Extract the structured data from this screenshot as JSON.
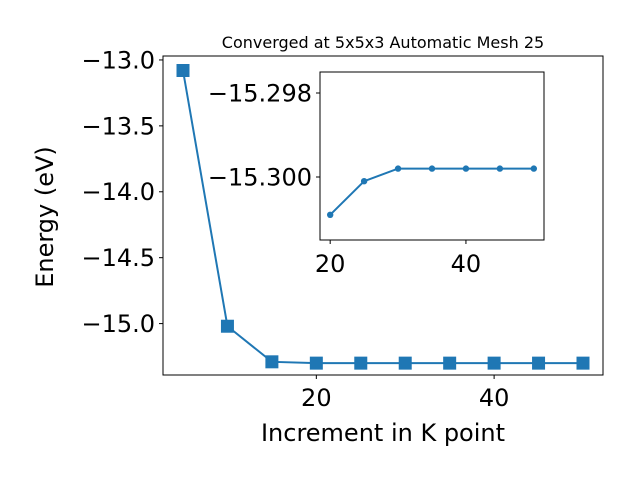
{
  "chart_data": [
    {
      "type": "line",
      "title": "Converged at 5x5x3 Automatic Mesh 25",
      "xlabel": "Increment in K point",
      "ylabel": "Energy (eV)",
      "xlim": [
        2.75,
        52.25
      ],
      "ylim": [
        -15.39,
        -12.97
      ],
      "xticks": [
        20,
        40
      ],
      "xtick_labels": [
        "20",
        "40"
      ],
      "yticks": [
        -13.0,
        -13.5,
        -14.0,
        -14.5,
        -15.0
      ],
      "ytick_labels": [
        "−13.0",
        "−13.5",
        "−14.0",
        "−14.5",
        "−15.0"
      ],
      "grid": false,
      "color": "#1f77b4",
      "marker": "square",
      "series": [
        {
          "x": [
            5,
            10,
            15,
            20,
            25,
            30,
            35,
            40,
            45,
            50
          ],
          "y": [
            -13.08,
            -15.02,
            -15.29,
            -15.3,
            -15.3,
            -15.3,
            -15.3,
            -15.3,
            -15.3,
            -15.3
          ]
        }
      ]
    },
    {
      "type": "line",
      "role": "inset",
      "xlim": [
        18.5,
        51.5
      ],
      "ylim": [
        -15.3015,
        -15.2975
      ],
      "xticks": [
        20,
        40
      ],
      "xtick_labels": [
        "20",
        "40"
      ],
      "yticks": [
        -15.3,
        -15.298
      ],
      "ytick_labels": [
        "−15.300",
        "−15.298"
      ],
      "grid": false,
      "color": "#1f77b4",
      "marker": "circle",
      "series": [
        {
          "x": [
            20,
            25,
            30,
            35,
            40,
            45,
            50
          ],
          "y": [
            -15.3009,
            -15.3001,
            -15.2998,
            -15.2998,
            -15.2998,
            -15.2998,
            -15.2998
          ]
        }
      ]
    }
  ]
}
